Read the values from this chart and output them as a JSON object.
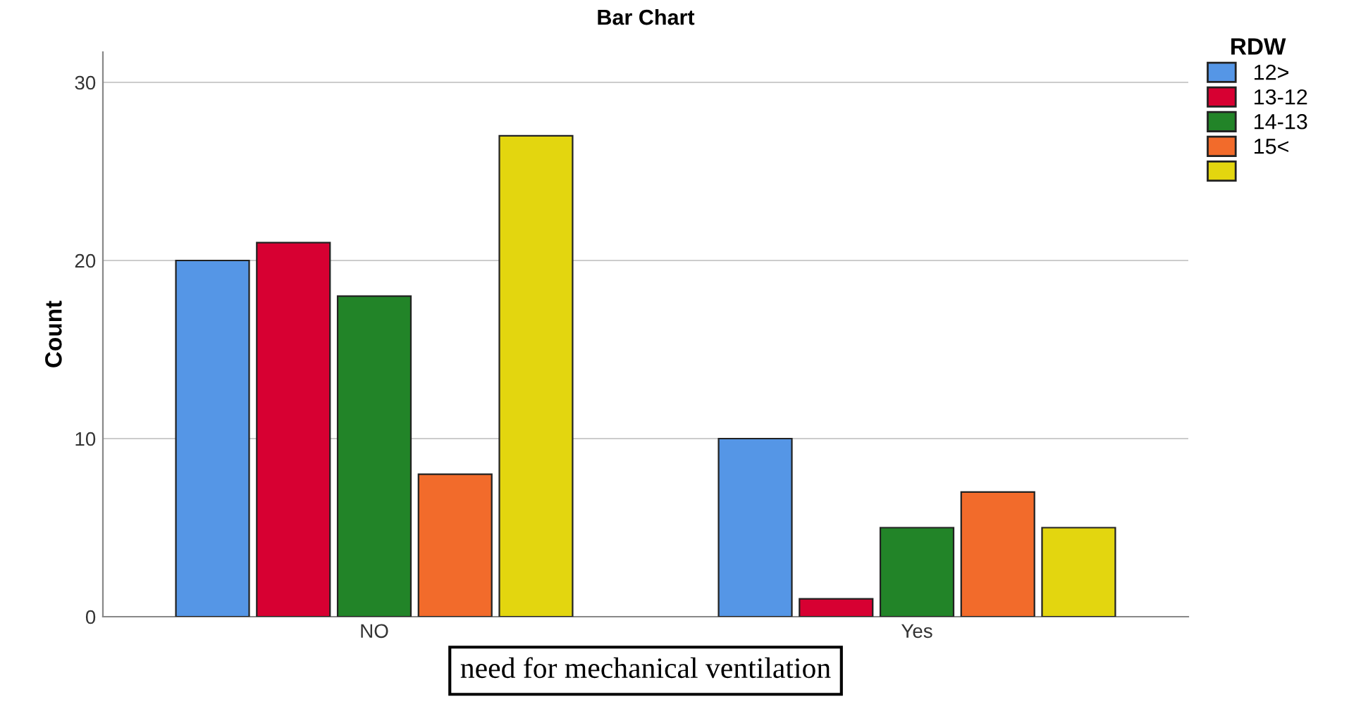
{
  "chart_data": {
    "type": "bar",
    "title": "Bar Chart",
    "xlabel": "need for mechanical ventilation",
    "ylabel": "Count",
    "legend_title": "RDW",
    "categories": [
      "NO",
      "Yes"
    ],
    "series": [
      {
        "name": "12>",
        "color": "#5596e6",
        "values": [
          20,
          10
        ]
      },
      {
        "name": "13-12",
        "color": "#d70032",
        "values": [
          21,
          1
        ]
      },
      {
        "name": "14-13",
        "color": "#228428",
        "values": [
          18,
          5
        ]
      },
      {
        "name": "15<",
        "color": "#f26b2b",
        "values": [
          8,
          7
        ]
      },
      {
        "color": "#e3d60f",
        "values": [
          27,
          5
        ]
      }
    ],
    "ylim": [
      0,
      31.7
    ],
    "yticks": [
      0,
      10,
      20,
      30
    ],
    "grid": "y",
    "legend": "top right"
  }
}
